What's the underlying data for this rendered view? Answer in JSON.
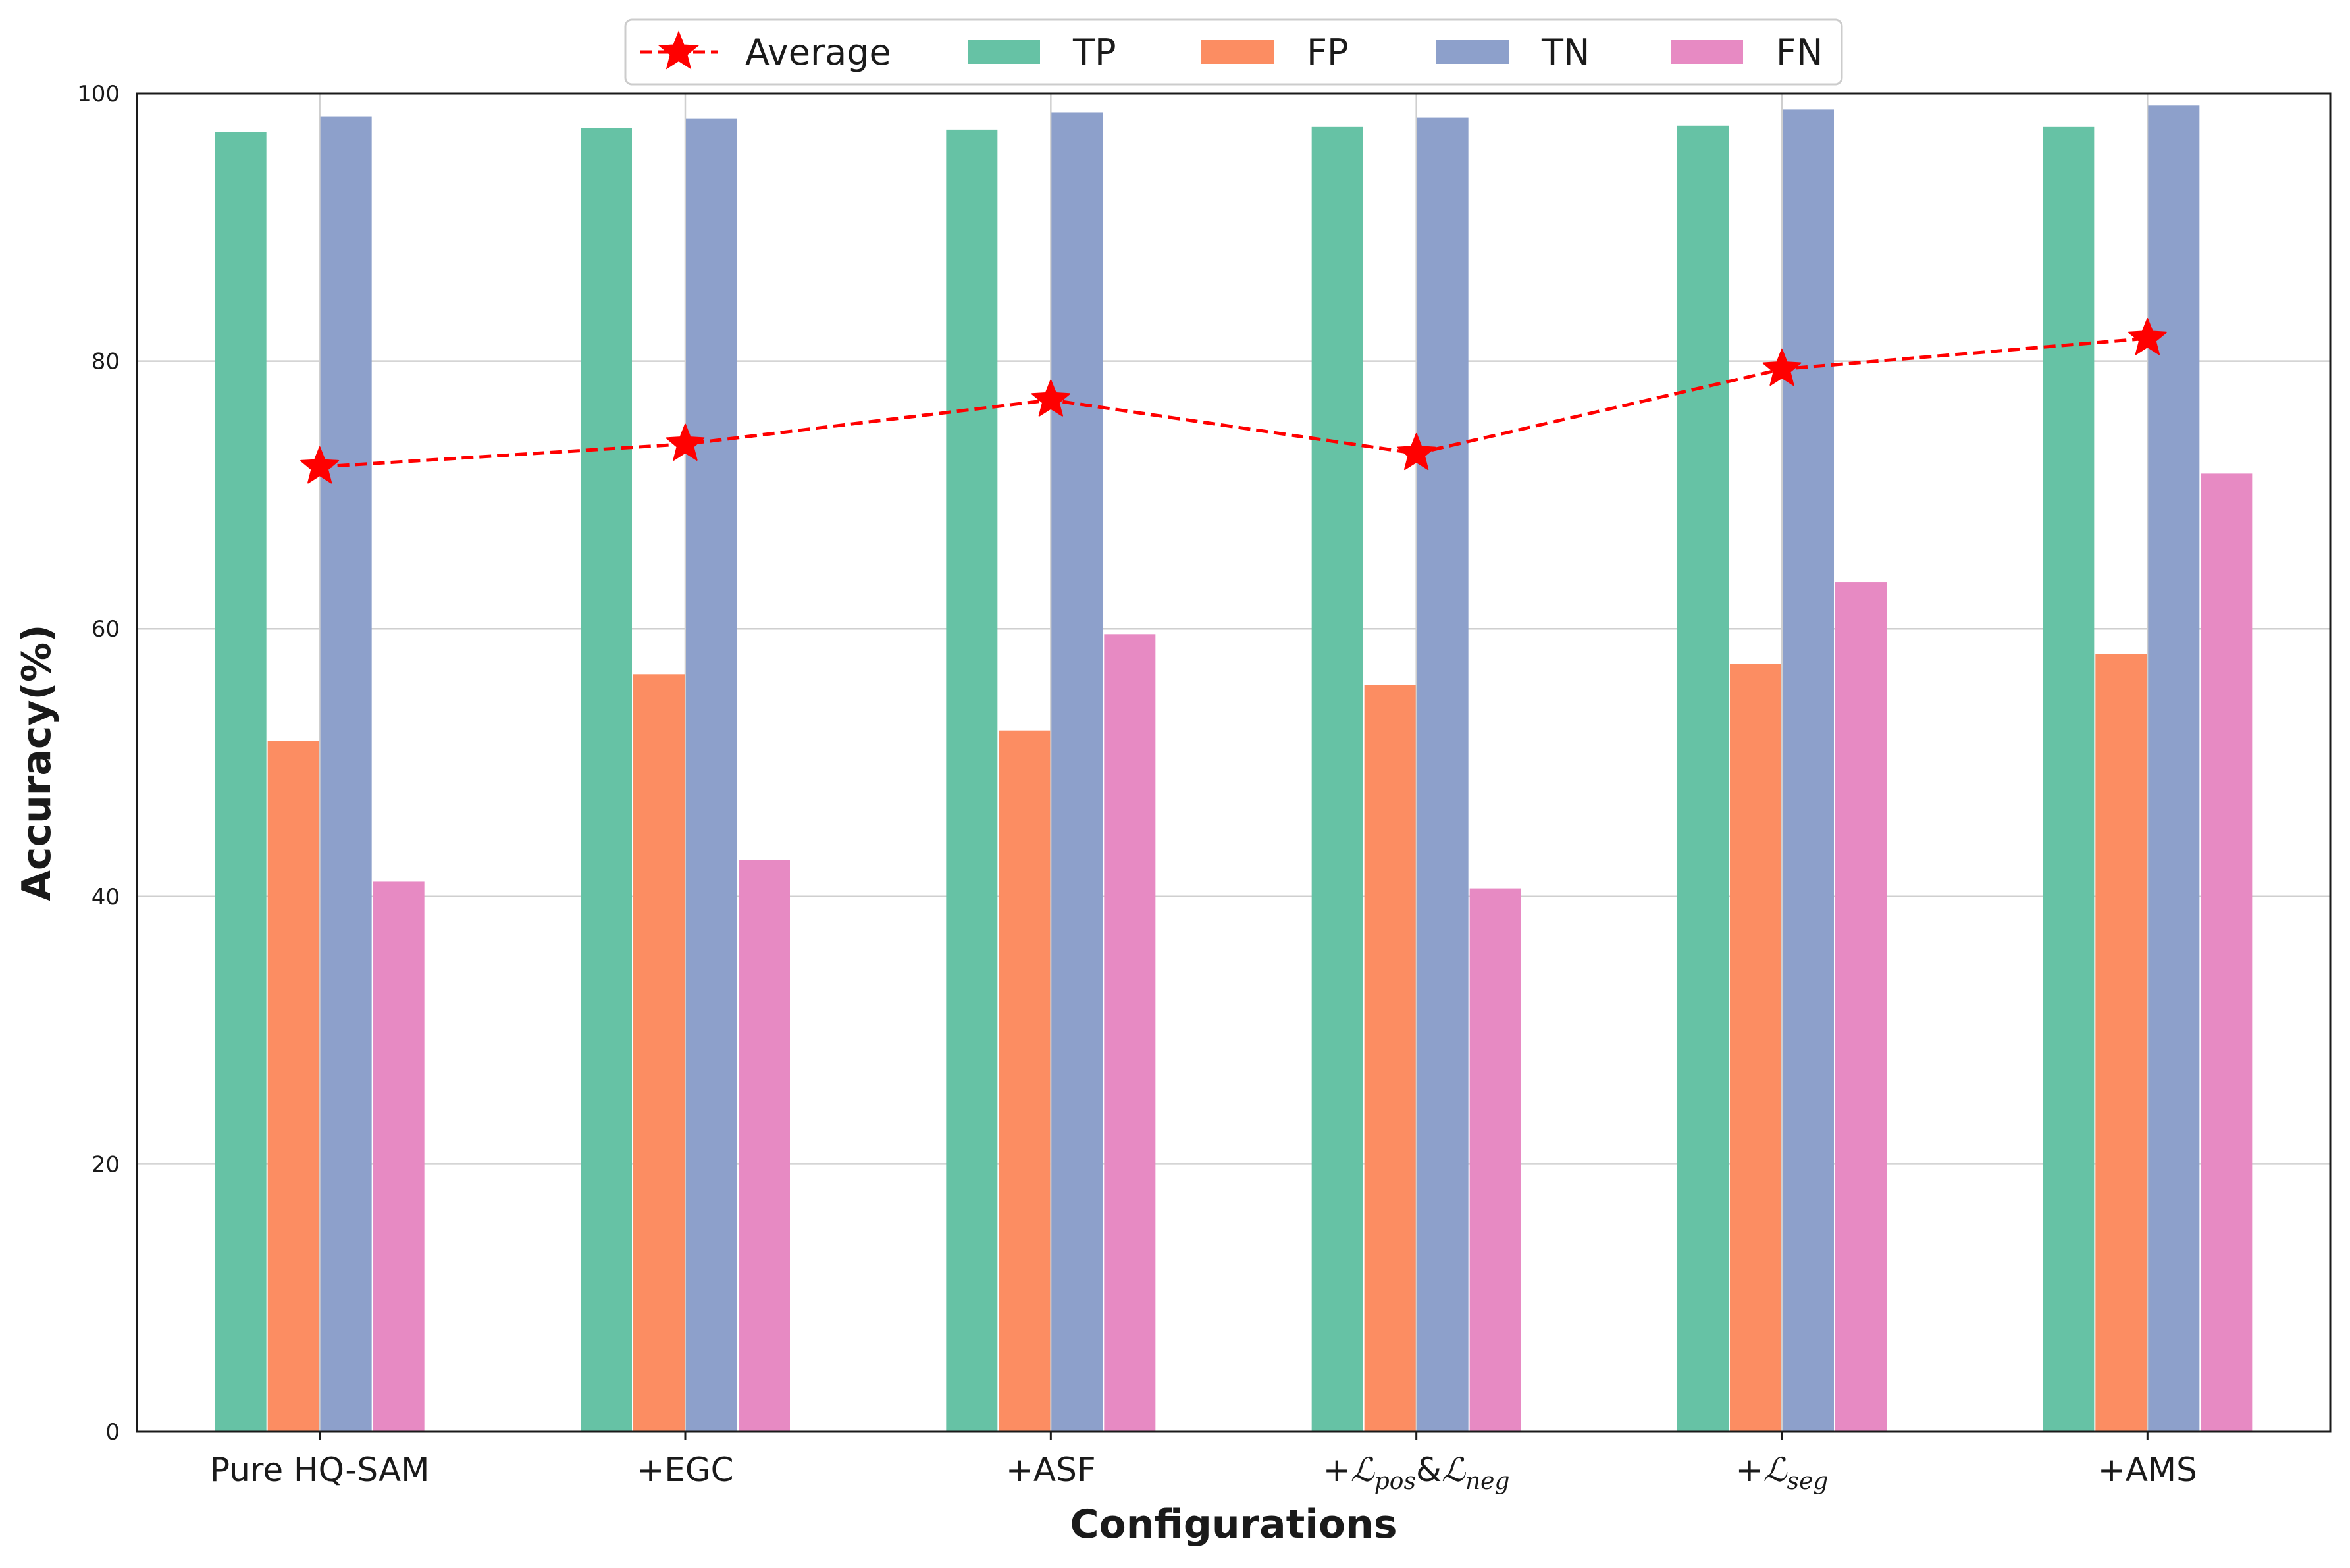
{
  "chart_data": {
    "type": "bar",
    "categories": [
      "Pure HQ-SAM",
      "+EGC",
      "+ASF",
      "+ℒpos&ℒneg",
      "+ℒseg",
      "+AMS"
    ],
    "category_parts": [
      [
        {
          "t": "Pure HQ-SAM"
        }
      ],
      [
        {
          "t": "+EGC"
        }
      ],
      [
        {
          "t": "+ASF"
        }
      ],
      [
        {
          "t": "+"
        },
        {
          "t": "ℒ",
          "m": true
        },
        {
          "t": "pos",
          "m": true,
          "sub": true
        },
        {
          "t": "&"
        },
        {
          "t": "ℒ",
          "m": true
        },
        {
          "t": "neg",
          "m": true,
          "sub": true
        }
      ],
      [
        {
          "t": "+"
        },
        {
          "t": "ℒ",
          "m": true
        },
        {
          "t": "seg",
          "m": true,
          "sub": true
        }
      ],
      [
        {
          "t": "+AMS"
        }
      ]
    ],
    "series": [
      {
        "name": "TP",
        "color": "#66c2a5",
        "values": [
          97.1,
          97.4,
          97.3,
          97.5,
          97.6,
          97.5
        ]
      },
      {
        "name": "FP",
        "color": "#fc8d62",
        "values": [
          51.6,
          56.6,
          52.4,
          55.8,
          57.4,
          58.1
        ]
      },
      {
        "name": "TN",
        "color": "#8da0cb",
        "values": [
          98.3,
          98.1,
          98.6,
          98.2,
          98.8,
          99.1
        ]
      },
      {
        "name": "FN",
        "color": "#e78ac3",
        "values": [
          41.1,
          42.7,
          59.6,
          40.6,
          63.5,
          71.6
        ]
      }
    ],
    "line_series": {
      "name": "Average",
      "color": "#ff0000",
      "style": "dashed",
      "marker": "star",
      "values": [
        72.1,
        73.8,
        77.1,
        73.1,
        79.4,
        81.7
      ]
    },
    "title": "",
    "xlabel": "Configurations",
    "ylabel": "Accuracy(%)",
    "ylim": [
      0,
      100
    ],
    "yticks": [
      "0",
      "20",
      "40",
      "60",
      "80",
      "100"
    ],
    "grid": true,
    "legend": {
      "position": "top-center",
      "entries": [
        "Average",
        "TP",
        "FP",
        "TN",
        "FN"
      ]
    }
  }
}
